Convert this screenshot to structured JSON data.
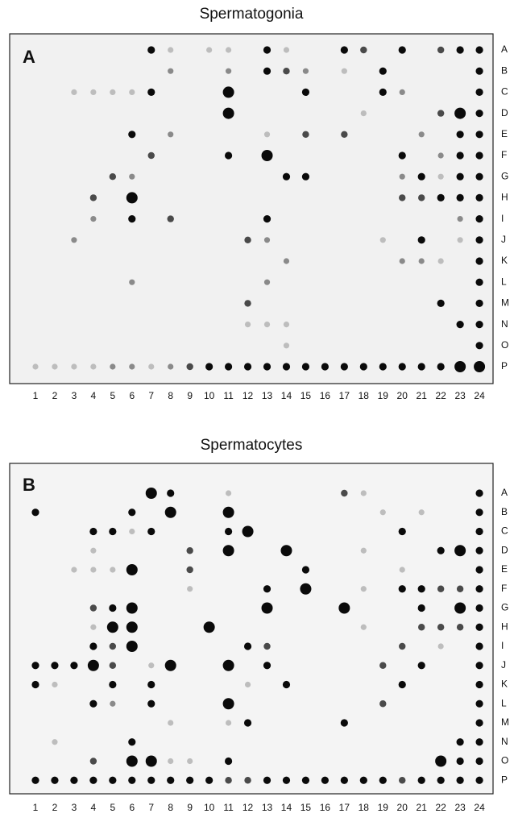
{
  "panels": [
    {
      "title": "Spermatogonia",
      "letter": "A",
      "rows": [
        "A",
        "B",
        "C",
        "D",
        "E",
        "F",
        "G",
        "H",
        "I",
        "J",
        "K",
        "L",
        "M",
        "N",
        "O",
        "P"
      ],
      "columns": [
        "1",
        "2",
        "3",
        "4",
        "5",
        "6",
        "7",
        "8",
        "9",
        "10",
        "11",
        "12",
        "13",
        "14",
        "15",
        "16",
        "17",
        "18",
        "19",
        "20",
        "21",
        "22",
        "23",
        "24"
      ]
    },
    {
      "title": "Spermatocytes",
      "letter": "B",
      "rows": [
        "A",
        "B",
        "C",
        "D",
        "E",
        "F",
        "G",
        "H",
        "I",
        "J",
        "K",
        "L",
        "M",
        "N",
        "O",
        "P"
      ],
      "columns": [
        "1",
        "2",
        "3",
        "4",
        "5",
        "6",
        "7",
        "8",
        "9",
        "10",
        "11",
        "12",
        "13",
        "14",
        "15",
        "16",
        "17",
        "18",
        "19",
        "20",
        "21",
        "22",
        "23",
        "24"
      ]
    }
  ]
}
